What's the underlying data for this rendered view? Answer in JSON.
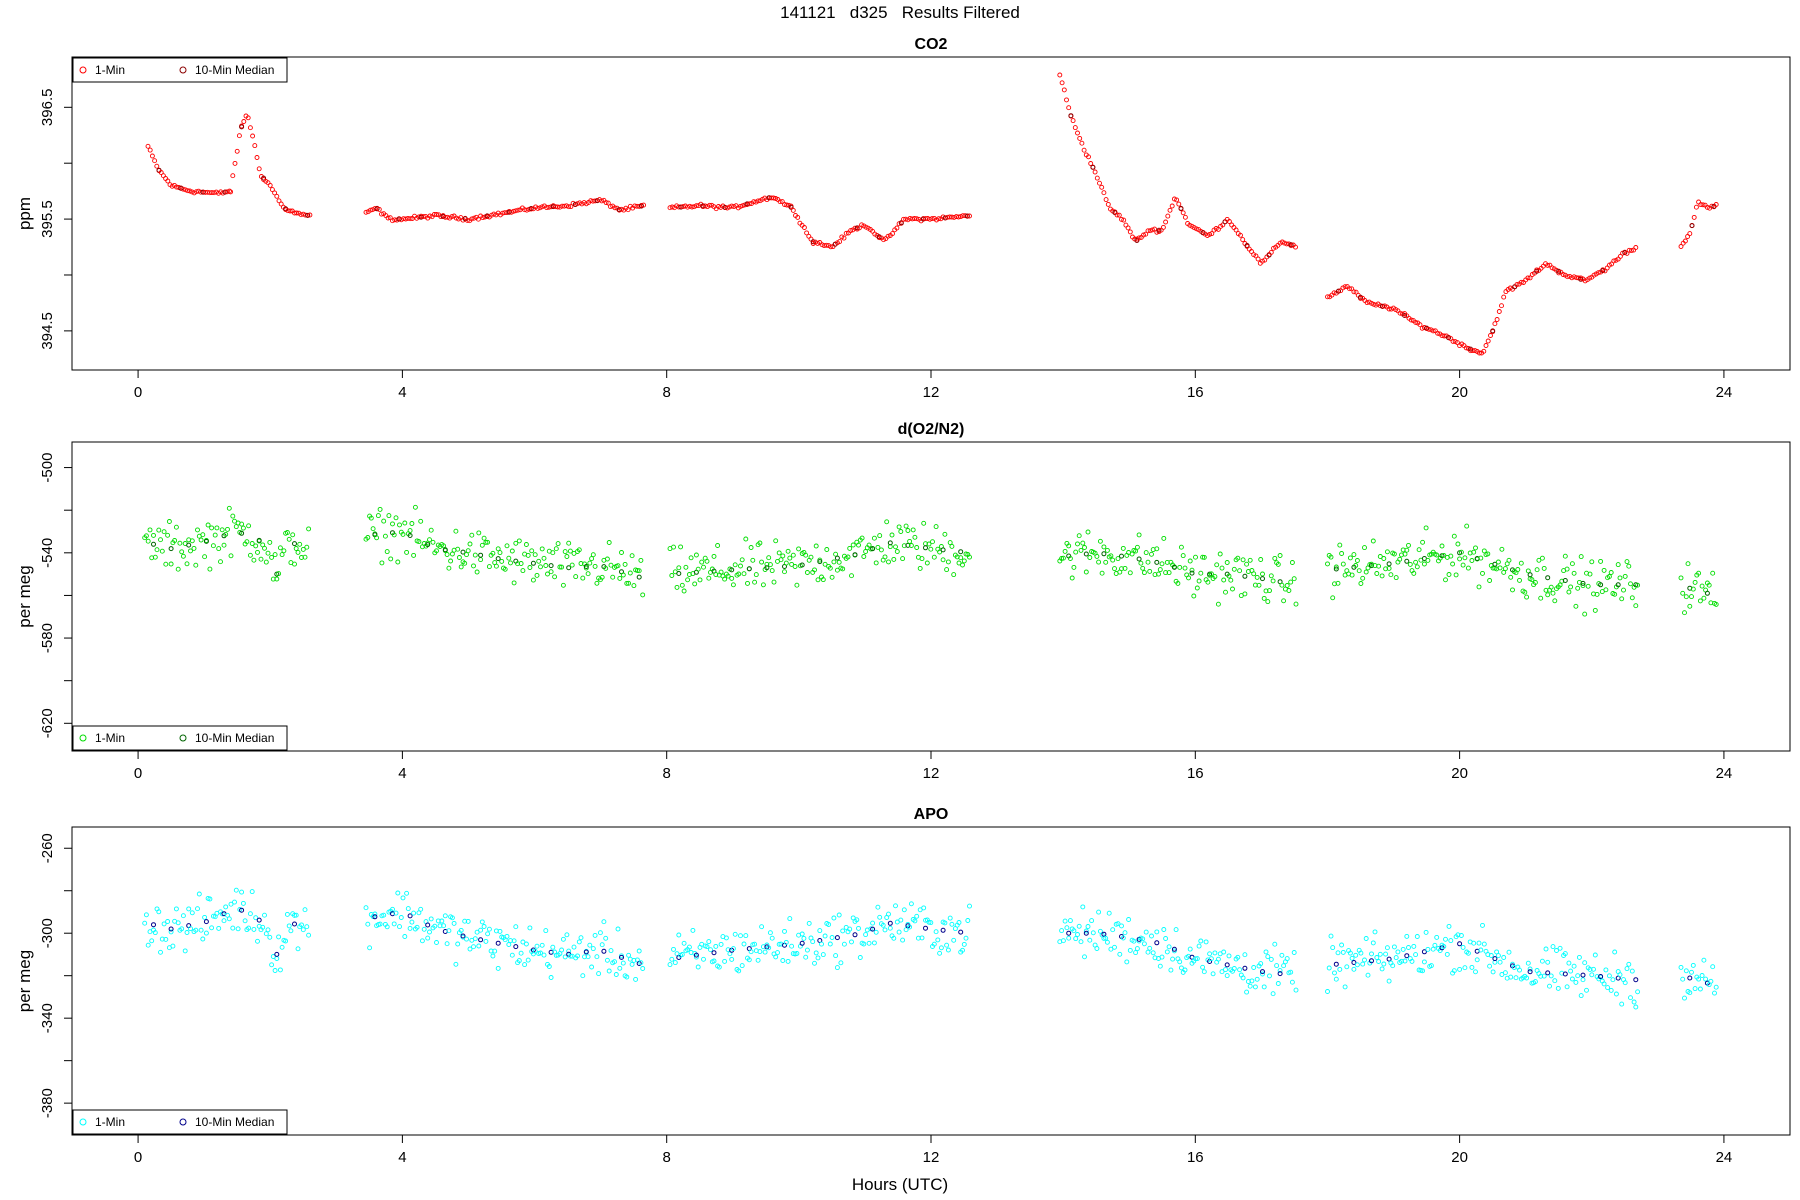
{
  "figure": {
    "title": "141121   d325   Results Filtered",
    "xlabel": "Hours (UTC)"
  },
  "chart_data": [
    {
      "type": "scatter",
      "title": "CO2",
      "ylabel": "ppm",
      "xlim": [
        -1.0,
        25.0
      ],
      "ylim": [
        394.15,
        396.95
      ],
      "xticks": [
        0,
        4,
        8,
        12,
        16,
        20,
        24
      ],
      "yticks": [
        394.5,
        395.5,
        396.5
      ],
      "ytick_labels": [
        "394.5",
        "395.5",
        "396.5"
      ],
      "minor_yticks": [
        395.0,
        396.0
      ],
      "legend": {
        "position": "top-left",
        "entries": [
          "1-Min",
          "10-Min Median"
        ]
      },
      "colors": {
        "one_min": "#ff0000",
        "median": "#8b0000"
      },
      "noise": 0.01,
      "segments": [
        {
          "x": [
            0.15,
            0.3,
            0.5,
            0.8,
            1.2,
            1.4
          ],
          "y": [
            396.15,
            395.95,
            395.8,
            395.75,
            395.73,
            395.75
          ]
        },
        {
          "x": [
            1.4,
            1.55,
            1.65,
            1.75,
            1.85,
            2.0,
            2.2,
            2.4,
            2.6
          ],
          "y": [
            395.75,
            396.3,
            396.45,
            396.2,
            395.9,
            395.8,
            395.6,
            395.55,
            395.53
          ]
        },
        {
          "x": [
            3.45,
            3.6,
            3.8,
            4.0,
            4.5,
            5.0,
            5.5,
            6.0,
            6.5,
            7.0,
            7.3,
            7.65
          ],
          "y": [
            395.55,
            395.6,
            395.5,
            395.5,
            395.53,
            395.5,
            395.55,
            395.6,
            395.62,
            395.67,
            395.58,
            395.62
          ]
        },
        {
          "x": [
            8.05,
            8.5,
            9.0,
            9.3,
            9.6,
            9.9,
            10.2,
            10.5,
            10.8,
            11.0,
            11.3,
            11.6,
            12.0,
            12.6
          ],
          "y": [
            395.6,
            395.62,
            395.6,
            395.65,
            395.7,
            395.6,
            395.3,
            395.25,
            395.4,
            395.45,
            395.3,
            395.5,
            395.5,
            395.53
          ]
        },
        {
          "x": [
            13.95,
            14.1,
            14.3,
            14.5,
            14.7,
            14.9,
            15.1,
            15.3,
            15.5,
            15.7,
            15.9,
            16.2,
            16.5,
            16.8,
            17.0,
            17.3,
            17.55
          ],
          "y": [
            396.8,
            396.45,
            396.15,
            395.9,
            395.6,
            395.5,
            395.3,
            395.4,
            395.4,
            395.7,
            395.45,
            395.35,
            395.5,
            395.25,
            395.1,
            395.3,
            395.25
          ]
        },
        {
          "x": [
            18.0,
            18.3,
            18.6,
            19.0,
            19.4,
            19.8,
            20.1,
            20.35,
            20.5,
            20.7,
            21.0,
            21.3,
            21.6,
            21.9,
            22.2,
            22.5,
            22.7
          ],
          "y": [
            394.8,
            394.9,
            394.75,
            394.7,
            394.55,
            394.45,
            394.35,
            394.3,
            394.5,
            394.85,
            394.95,
            395.1,
            395.0,
            394.95,
            395.05,
            395.2,
            395.25
          ]
        },
        {
          "x": [
            23.35,
            23.5,
            23.6,
            23.75,
            23.9
          ],
          "y": [
            395.25,
            395.4,
            395.65,
            395.6,
            395.62
          ]
        }
      ]
    },
    {
      "type": "scatter",
      "title": "d(O2/N2)",
      "ylabel": "per meg",
      "xlim": [
        -1.0,
        25.0
      ],
      "ylim": [
        -633,
        -488
      ],
      "xticks": [
        0,
        4,
        8,
        12,
        16,
        20,
        24
      ],
      "yticks": [
        -620,
        -580,
        -540,
        -500
      ],
      "ytick_labels": [
        "-620",
        "-580",
        "-540",
        "-500"
      ],
      "minor_yticks": [
        -600,
        -560,
        -520
      ],
      "legend": {
        "position": "bottom-left",
        "entries": [
          "1-Min",
          "10-Min Median"
        ]
      },
      "colors": {
        "one_min": "#00dd00",
        "median": "#006400"
      },
      "noise": 8,
      "segments": [
        {
          "x": [
            0.1,
            0.5,
            1.0,
            1.5,
            1.9,
            2.1,
            2.3,
            2.6
          ],
          "y": [
            -535,
            -538,
            -535,
            -530,
            -535,
            -550,
            -535,
            -538
          ]
        },
        {
          "x": [
            3.45,
            4.0,
            4.5,
            5.0,
            5.5,
            6.0,
            6.5,
            7.0,
            7.65
          ],
          "y": [
            -532,
            -530,
            -538,
            -540,
            -543,
            -545,
            -547,
            -546,
            -552
          ]
        },
        {
          "x": [
            8.05,
            9.0,
            10.0,
            11.0,
            11.3,
            12.0,
            12.6
          ],
          "y": [
            -550,
            -548,
            -546,
            -540,
            -535,
            -538,
            -540
          ]
        },
        {
          "x": [
            13.95,
            14.5,
            15.0,
            15.5,
            16.0,
            16.5,
            17.0,
            17.55
          ],
          "y": [
            -542,
            -540,
            -542,
            -545,
            -550,
            -550,
            -552,
            -555
          ]
        },
        {
          "x": [
            18.0,
            19.0,
            20.0,
            21.0,
            22.0,
            22.7
          ],
          "y": [
            -548,
            -545,
            -540,
            -550,
            -555,
            -555
          ]
        },
        {
          "x": [
            23.35,
            23.6,
            23.9
          ],
          "y": [
            -555,
            -558,
            -560
          ]
        }
      ]
    },
    {
      "type": "scatter",
      "title": "APO",
      "ylabel": "per meg",
      "xlim": [
        -1.0,
        25.0
      ],
      "ylim": [
        -395,
        -250
      ],
      "xticks": [
        0,
        4,
        8,
        12,
        16,
        20,
        24
      ],
      "yticks": [
        -380,
        -340,
        -300,
        -260
      ],
      "ytick_labels": [
        "-380",
        "-340",
        "-300",
        "-260"
      ],
      "minor_yticks": [
        -360,
        -320,
        -280
      ],
      "legend": {
        "position": "bottom-left",
        "entries": [
          "1-Min",
          "10-Min Median"
        ]
      },
      "colors": {
        "one_min": "#00ffff",
        "median": "#00008b"
      },
      "noise": 8,
      "segments": [
        {
          "x": [
            0.1,
            0.5,
            1.0,
            1.5,
            1.9,
            2.1,
            2.3,
            2.6
          ],
          "y": [
            -295,
            -298,
            -295,
            -288,
            -295,
            -310,
            -295,
            -298
          ]
        },
        {
          "x": [
            3.45,
            4.0,
            4.5,
            5.0,
            5.5,
            6.0,
            6.5,
            7.0,
            7.65
          ],
          "y": [
            -293,
            -290,
            -298,
            -302,
            -305,
            -308,
            -310,
            -308,
            -315
          ]
        },
        {
          "x": [
            8.05,
            9.0,
            10.0,
            11.0,
            11.3,
            12.0,
            12.6
          ],
          "y": [
            -312,
            -308,
            -305,
            -300,
            -295,
            -298,
            -300
          ]
        },
        {
          "x": [
            13.95,
            14.5,
            15.0,
            15.5,
            16.0,
            16.5,
            17.0,
            17.55
          ],
          "y": [
            -300,
            -300,
            -302,
            -305,
            -312,
            -315,
            -318,
            -320
          ]
        },
        {
          "x": [
            18.0,
            19.0,
            20.0,
            21.0,
            22.0,
            22.7
          ],
          "y": [
            -315,
            -312,
            -305,
            -318,
            -320,
            -322
          ]
        },
        {
          "x": [
            23.35,
            23.6,
            23.9
          ],
          "y": [
            -320,
            -322,
            -325
          ]
        }
      ]
    }
  ]
}
